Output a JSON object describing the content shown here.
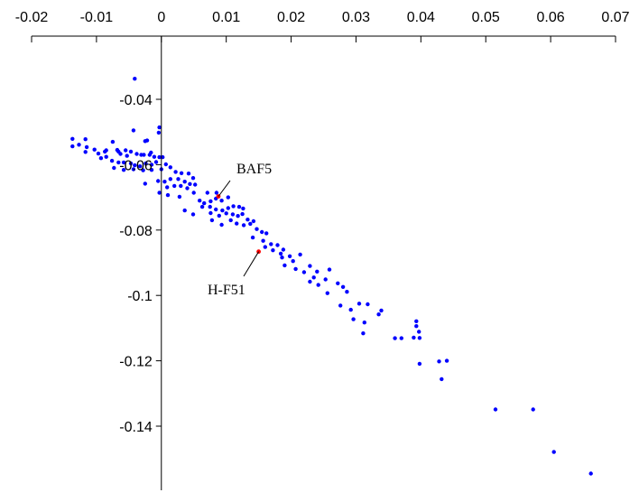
{
  "chart_data": {
    "type": "scatter",
    "title": "",
    "xlabel": "",
    "ylabel": "",
    "xlim": [
      -0.02,
      0.07
    ],
    "ylim": [
      -0.155,
      -0.03
    ],
    "x_ticks": [
      -0.02,
      -0.01,
      0,
      0.01,
      0.02,
      0.03,
      0.04,
      0.05,
      0.06,
      0.07
    ],
    "x_tick_labels": [
      "-0.02",
      "-0.01",
      "0",
      "0.01",
      "0.02",
      "0.03",
      "0.04",
      "0.05",
      "0.06",
      "0.07"
    ],
    "y_ticks": [
      -0.04,
      -0.06,
      -0.08,
      -0.1,
      -0.12,
      -0.14
    ],
    "y_tick_labels": [
      "-0.04",
      "-0.06",
      "-0.08",
      "-0.1",
      "-0.12",
      "-0.14"
    ],
    "grid": false,
    "colors": {
      "points": "#0000ff",
      "highlight": "#ff0000",
      "axis": "#000000"
    },
    "series": [
      {
        "values": [
          [
            -0.0041,
            -0.0337
          ],
          [
            -0.0003,
            -0.0486
          ],
          [
            -0.0004,
            -0.0502
          ],
          [
            -0.0043,
            -0.0495
          ],
          [
            -0.0022,
            -0.0526
          ],
          [
            -0.0025,
            -0.0528
          ],
          [
            -0.0137,
            -0.0521
          ],
          [
            -0.0117,
            -0.0522
          ],
          [
            -0.0127,
            -0.0539
          ],
          [
            -0.0137,
            -0.0544
          ],
          [
            -0.0115,
            -0.0546
          ],
          [
            -0.0103,
            -0.0554
          ],
          [
            -0.0117,
            -0.0561
          ],
          [
            -0.0097,
            -0.0566
          ],
          [
            -0.0085,
            -0.0556
          ],
          [
            -0.0075,
            -0.053
          ],
          [
            -0.0066,
            -0.056
          ],
          [
            -0.0087,
            -0.056
          ],
          [
            -0.0068,
            -0.0555
          ],
          [
            -0.0055,
            -0.0556
          ],
          [
            -0.0047,
            -0.056
          ],
          [
            -0.0063,
            -0.0567
          ],
          [
            -0.0053,
            -0.0573
          ],
          [
            -0.0038,
            -0.0567
          ],
          [
            -0.0031,
            -0.057
          ],
          [
            -0.0027,
            -0.057
          ],
          [
            -0.0018,
            -0.057
          ],
          [
            -0.0016,
            -0.0563
          ],
          [
            -0.0011,
            -0.0576
          ],
          [
            -0.0003,
            -0.0577
          ],
          [
            -0.0093,
            -0.058
          ],
          [
            -0.0085,
            -0.0576
          ],
          [
            -0.0076,
            -0.0588
          ],
          [
            -0.0066,
            -0.0593
          ],
          [
            -0.0058,
            -0.0593
          ],
          [
            -0.0047,
            -0.0596
          ],
          [
            -0.0041,
            -0.0602
          ],
          [
            -0.0033,
            -0.0605
          ],
          [
            -0.0024,
            -0.0596
          ],
          [
            -0.0015,
            -0.06
          ],
          [
            -0.0008,
            -0.0592
          ],
          [
            0.0002,
            -0.0577
          ],
          [
            -0.0073,
            -0.061
          ],
          [
            -0.0058,
            -0.0616
          ],
          [
            -0.0043,
            -0.0614
          ],
          [
            -0.0028,
            -0.0617
          ],
          [
            -0.0015,
            -0.0616
          ],
          [
            0.0,
            -0.0614
          ],
          [
            0.0007,
            -0.0599
          ],
          [
            0.0014,
            -0.0608
          ],
          [
            0.0022,
            -0.0622
          ],
          [
            0.0031,
            -0.0626
          ],
          [
            0.0042,
            -0.0627
          ],
          [
            0.0049,
            -0.0641
          ],
          [
            -0.0025,
            -0.0658
          ],
          [
            -0.0005,
            -0.065
          ],
          [
            0.0005,
            -0.0652
          ],
          [
            0.0014,
            -0.0644
          ],
          [
            0.0026,
            -0.0644
          ],
          [
            0.0036,
            -0.0652
          ],
          [
            0.0044,
            -0.0659
          ],
          [
            0.0052,
            -0.0661
          ],
          [
            0.0009,
            -0.0669
          ],
          [
            0.002,
            -0.0665
          ],
          [
            0.003,
            -0.0665
          ],
          [
            0.004,
            -0.0672
          ],
          [
            -0.0003,
            -0.0686
          ],
          [
            0.001,
            -0.0693
          ],
          [
            0.0028,
            -0.0698
          ],
          [
            0.005,
            -0.0686
          ],
          [
            0.0071,
            -0.0686
          ],
          [
            0.0085,
            -0.0686
          ],
          [
            0.0059,
            -0.071
          ],
          [
            0.0066,
            -0.0718
          ],
          [
            0.0076,
            -0.0712
          ],
          [
            0.0084,
            -0.0704
          ],
          [
            0.0093,
            -0.071
          ],
          [
            0.0103,
            -0.07
          ],
          [
            0.0036,
            -0.074
          ],
          [
            0.0063,
            -0.0729
          ],
          [
            0.0075,
            -0.0729
          ],
          [
            0.0084,
            -0.0737
          ],
          [
            0.0094,
            -0.074
          ],
          [
            0.0103,
            -0.0733
          ],
          [
            0.0111,
            -0.0727
          ],
          [
            0.012,
            -0.0729
          ],
          [
            0.0126,
            -0.0734
          ],
          [
            0.0049,
            -0.0752
          ],
          [
            0.0076,
            -0.0748
          ],
          [
            0.0089,
            -0.0756
          ],
          [
            0.01,
            -0.0749
          ],
          [
            0.011,
            -0.0752
          ],
          [
            0.0118,
            -0.0757
          ],
          [
            0.0125,
            -0.0751
          ],
          [
            0.0133,
            -0.0768
          ],
          [
            0.0142,
            -0.0773
          ],
          [
            0.0078,
            -0.077
          ],
          [
            0.0093,
            -0.0784
          ],
          [
            0.0107,
            -0.077
          ],
          [
            0.0116,
            -0.078
          ],
          [
            0.0127,
            -0.0785
          ],
          [
            0.0137,
            -0.0781
          ],
          [
            0.0147,
            -0.0797
          ],
          [
            0.0155,
            -0.0806
          ],
          [
            0.0162,
            -0.081
          ],
          [
            0.0141,
            -0.0823
          ],
          [
            0.0157,
            -0.0833
          ],
          [
            0.0169,
            -0.0843
          ],
          [
            0.0179,
            -0.0846
          ],
          [
            0.0188,
            -0.086
          ],
          [
            0.016,
            -0.0852
          ],
          [
            0.0172,
            -0.0862
          ],
          [
            0.0184,
            -0.0872
          ],
          [
            0.0198,
            -0.088
          ],
          [
            0.0214,
            -0.0875
          ],
          [
            0.0186,
            -0.0884
          ],
          [
            0.0203,
            -0.0895
          ],
          [
            0.019,
            -0.0908
          ],
          [
            0.0207,
            -0.0919
          ],
          [
            0.0229,
            -0.091
          ],
          [
            0.024,
            -0.0927
          ],
          [
            0.0259,
            -0.0921
          ],
          [
            0.022,
            -0.0929
          ],
          [
            0.0235,
            -0.0945
          ],
          [
            0.0253,
            -0.0951
          ],
          [
            0.0229,
            -0.0958
          ],
          [
            0.0242,
            -0.0968
          ],
          [
            0.0272,
            -0.0963
          ],
          [
            0.028,
            -0.0974
          ],
          [
            0.0286,
            -0.0989
          ],
          [
            0.0256,
            -0.0993
          ],
          [
            0.0305,
            -0.1025
          ],
          [
            0.0318,
            -0.1027
          ],
          [
            0.0276,
            -0.1031
          ],
          [
            0.0292,
            -0.1044
          ],
          [
            0.0313,
            -0.1083
          ],
          [
            0.0339,
            -0.1046
          ],
          [
            0.0335,
            -0.1058
          ],
          [
            0.0296,
            -0.1073
          ],
          [
            0.0311,
            -0.1116
          ],
          [
            0.036,
            -0.1131
          ],
          [
            0.037,
            -0.1131
          ],
          [
            0.0393,
            -0.1079
          ],
          [
            0.0393,
            -0.1094
          ],
          [
            0.0397,
            -0.1111
          ],
          [
            0.0389,
            -0.1129
          ],
          [
            0.0398,
            -0.113
          ],
          [
            0.0398,
            -0.1209
          ],
          [
            0.0428,
            -0.1202
          ],
          [
            0.044,
            -0.12
          ],
          [
            0.0432,
            -0.1256
          ],
          [
            0.0515,
            -0.1349
          ],
          [
            0.0573,
            -0.1349
          ],
          [
            0.0605,
            -0.1479
          ],
          [
            0.0662,
            -0.1545
          ]
        ]
      },
      {
        "values": [
          [
            0.0088,
            -0.0697
          ],
          [
            0.015,
            -0.0866
          ]
        ]
      }
    ],
    "annotations": [
      {
        "text": "BAF5",
        "x": 0.0088,
        "y": -0.0697
      },
      {
        "text": "H-F51",
        "x": 0.015,
        "y": -0.0866
      }
    ]
  }
}
